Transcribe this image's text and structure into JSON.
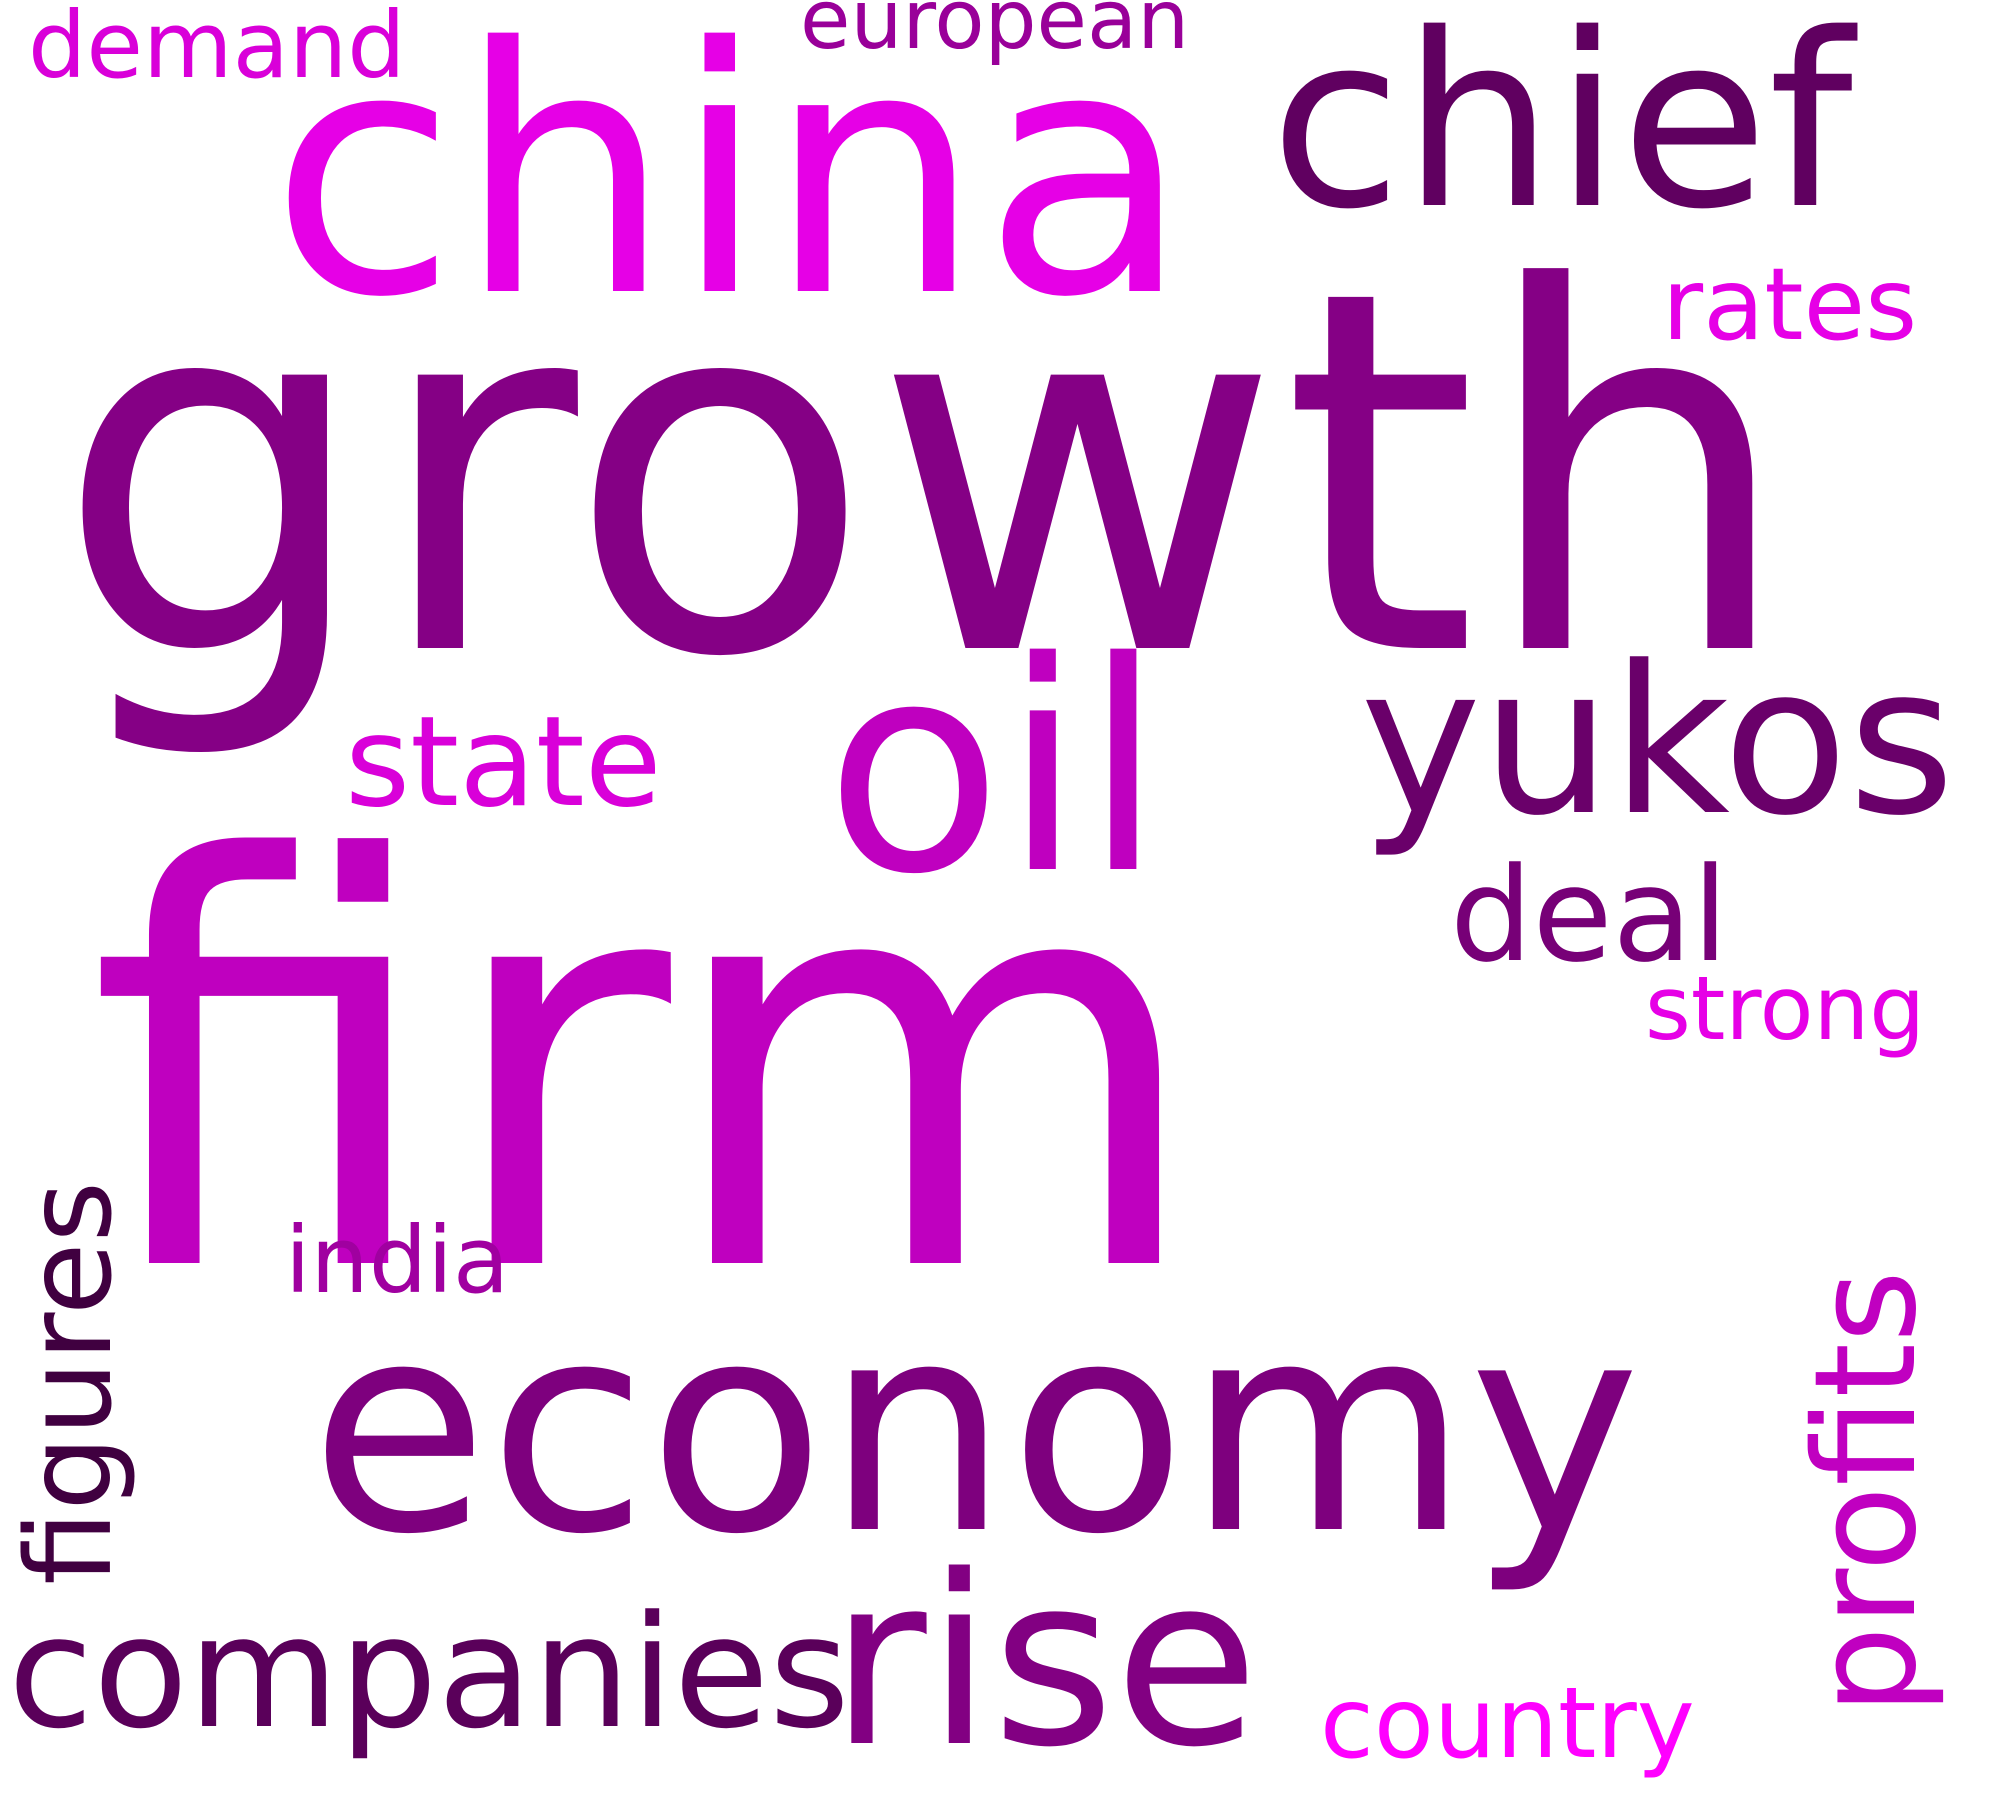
{
  "words": {
    "firm": {
      "text": "firm",
      "color": "#BF00BF"
    },
    "growth": {
      "text": "growth",
      "color": "#850085"
    },
    "china": {
      "text": "china",
      "color": "#E600E6"
    },
    "chief": {
      "text": "chief",
      "color": "#600060"
    },
    "oil": {
      "text": "oil",
      "color": "#BF00BF"
    },
    "economy": {
      "text": "economy",
      "color": "#7E007E"
    },
    "yukos": {
      "text": "yukos",
      "color": "#6A006A"
    },
    "rise": {
      "text": "rise",
      "color": "#820082"
    },
    "companies": {
      "text": "companies",
      "color": "#5A005A"
    },
    "state": {
      "text": "state",
      "color": "#D900D9"
    },
    "deal": {
      "text": "deal",
      "color": "#770077"
    },
    "rates": {
      "text": "rates",
      "color": "#E600E6"
    },
    "strong": {
      "text": "strong",
      "color": "#E600E6"
    },
    "country": {
      "text": "country",
      "color": "#FF00FF"
    },
    "demand": {
      "text": "demand",
      "color": "#D900D9"
    },
    "european": {
      "text": "european",
      "color": "#990099"
    },
    "india": {
      "text": "india",
      "color": "#A000A0"
    },
    "profits": {
      "text": "profits",
      "color": "#C000C0"
    },
    "figures": {
      "text": "figures",
      "color": "#400040"
    }
  }
}
